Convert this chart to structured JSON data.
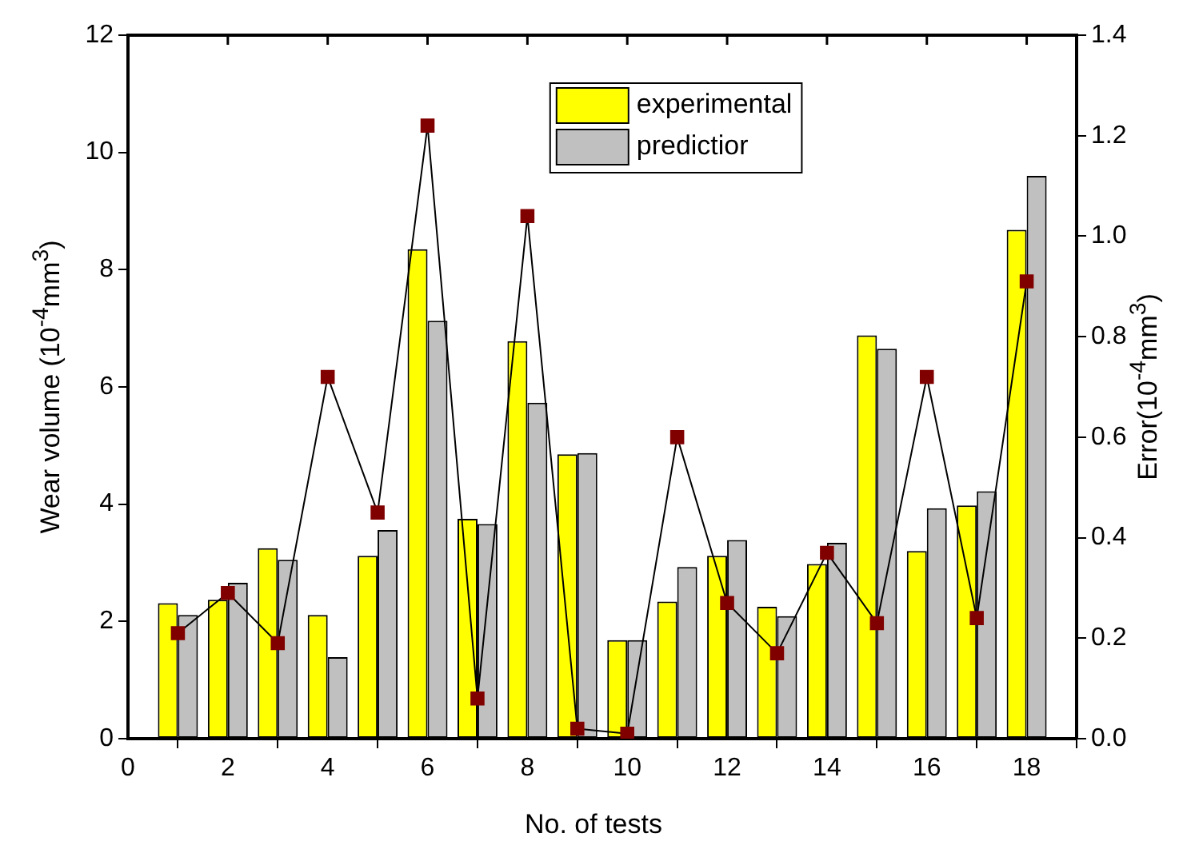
{
  "chart_data": {
    "type": "bar",
    "xlabel": "No. of tests",
    "ylabel": "Wear volume (10$^{-4}$mm$^{3}$)",
    "y2label": "Error(10$^{-4}$mm$^{3}$)",
    "x": [
      1,
      2,
      3,
      4,
      5,
      6,
      7,
      8,
      9,
      10,
      11,
      12,
      13,
      14,
      15,
      16,
      17,
      18
    ],
    "series": [
      {
        "name": "experimental",
        "color": "#ffff00",
        "values": [
          2.31,
          2.37,
          3.25,
          2.11,
          3.12,
          8.35,
          3.75,
          6.78,
          4.85,
          1.68,
          2.34,
          3.12,
          2.25,
          2.98,
          6.88,
          3.2,
          3.98,
          8.68
        ]
      },
      {
        "name": "predictior",
        "color": "#c0c0c0",
        "values": [
          2.11,
          2.66,
          3.05,
          1.39,
          3.56,
          7.13,
          3.66,
          5.73,
          4.87,
          1.68,
          2.93,
          3.39,
          2.09,
          3.34,
          6.65,
          3.93,
          4.22,
          9.6
        ]
      },
      {
        "type": "line",
        "axis": "y2",
        "color": "#800000",
        "marker": "square",
        "values": [
          0.21,
          0.29,
          0.19,
          0.72,
          0.45,
          1.22,
          0.08,
          1.04,
          0.02,
          0.01,
          0.6,
          0.27,
          0.17,
          0.37,
          0.23,
          0.72,
          0.24,
          0.91
        ]
      }
    ],
    "xlim": [
      0,
      19
    ],
    "xticks": [
      0,
      2,
      4,
      6,
      8,
      10,
      12,
      14,
      16,
      18
    ],
    "ylim": [
      0,
      12
    ],
    "yticks": [
      0,
      2,
      4,
      6,
      8,
      10,
      12
    ],
    "y2lim": [
      0,
      1.4
    ],
    "y2ticks": [
      {
        "value": 0,
        "label": "0.0"
      },
      {
        "value": 0.2,
        "label": "0.2"
      },
      {
        "value": 0.4,
        "label": "0.4"
      },
      {
        "value": 0.6,
        "label": "0.6"
      },
      {
        "value": 0.8,
        "label": "0.8"
      },
      {
        "value": 1,
        "label": "1.0"
      },
      {
        "value": 1.2,
        "label": "1.2"
      },
      {
        "value": 1.4,
        "label": "1.4"
      }
    ],
    "grid": false,
    "legend": "top"
  }
}
